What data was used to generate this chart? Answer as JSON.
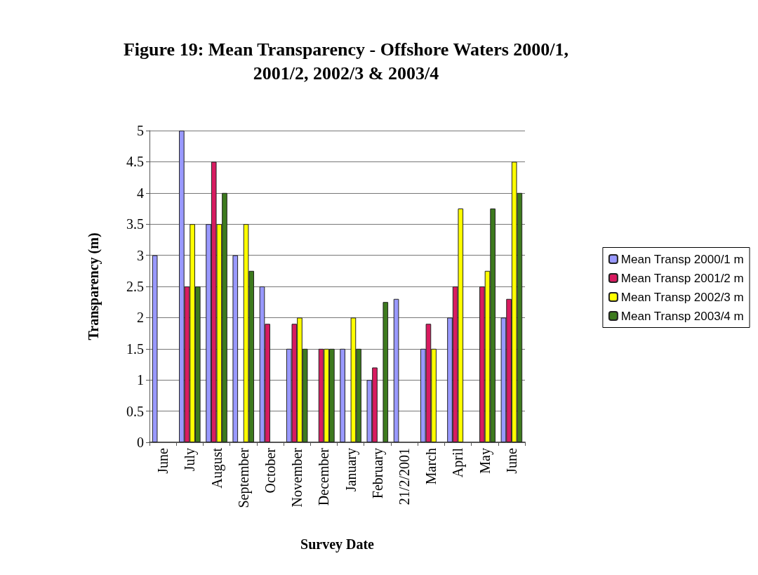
{
  "chart_data": {
    "type": "bar",
    "title": "Figure 19: Mean Transparency - Offshore Waters 2000/1,\n2001/2, 2002/3 & 2003/4",
    "xlabel": "Survey Date",
    "ylabel": "Transparency (m)",
    "categories": [
      "June",
      "July",
      "August",
      "September",
      "October",
      "November",
      "December",
      "January",
      "February",
      "21/2/2001",
      "March",
      "April",
      "May",
      "June"
    ],
    "series": [
      {
        "name": "Mean Transp 2000/1 m",
        "color": "#9999ff",
        "values": [
          3,
          5,
          3.5,
          3,
          2.5,
          1.5,
          null,
          1.5,
          1,
          2.3,
          1.5,
          2,
          null,
          2
        ]
      },
      {
        "name": "Mean Transp 2001/2 m",
        "color": "#d81b60",
        "values": [
          null,
          2.5,
          4.5,
          null,
          1.9,
          1.9,
          1.5,
          null,
          1.2,
          null,
          1.9,
          2.5,
          2.5,
          2.3
        ]
      },
      {
        "name": "Mean Transp 2002/3 m",
        "color": "#ffff00",
        "values": [
          null,
          3.5,
          3.5,
          3.5,
          null,
          2,
          1.5,
          2,
          null,
          null,
          1.5,
          3.75,
          2.75,
          4.5
        ]
      },
      {
        "name": "Mean Transp 2003/4 m",
        "color": "#3d7a1e",
        "values": [
          null,
          2.5,
          4,
          2.75,
          null,
          1.5,
          1.5,
          1.5,
          2.25,
          null,
          null,
          null,
          3.75,
          4
        ]
      }
    ],
    "ylim": [
      0,
      5
    ],
    "yticks": [
      0,
      0.5,
      1,
      1.5,
      2,
      2.5,
      3,
      3.5,
      4,
      4.5,
      5
    ],
    "grid": "y",
    "legend": "right"
  }
}
